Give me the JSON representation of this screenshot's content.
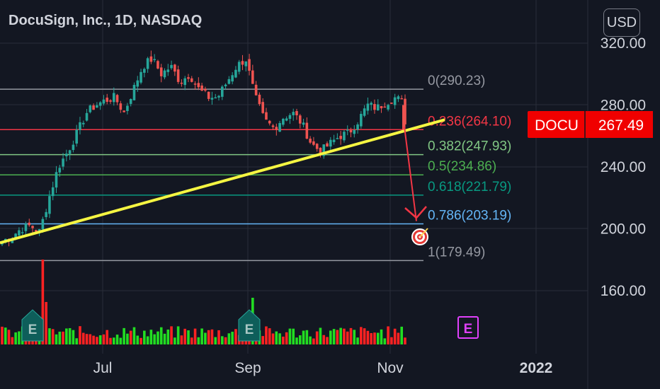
{
  "chart_title": "DocuSign, Inc., 1D, NASDAQ",
  "currency_button": "USD",
  "price_axis": {
    "ticks": [
      {
        "value": 320,
        "label": "320.00"
      },
      {
        "value": 280,
        "label": "280.00"
      },
      {
        "value": 240,
        "label": "240.00"
      },
      {
        "value": 200,
        "label": "200.00"
      },
      {
        "value": 160,
        "label": "160.00"
      }
    ]
  },
  "time_axis": {
    "ticks": [
      {
        "label": "Jul"
      },
      {
        "label": "Sep"
      },
      {
        "label": "Nov"
      },
      {
        "label": "2022"
      }
    ]
  },
  "price_badge": {
    "symbol": "DOCU",
    "price": "267.49",
    "value": 267.49
  },
  "earnings_markers": [
    "E",
    "E",
    "E"
  ],
  "colors": {
    "background": "#131722",
    "up": "#26a69a",
    "down": "#ef5350",
    "vol_up": "#22dd22",
    "vol_down": "#ff2222",
    "trendline": "#f5f542",
    "target_arrow": "#f23645",
    "badge": "#f00000",
    "earnings_future": "#e040fb",
    "earnings_past": "#0e5e5a"
  },
  "chart_data": {
    "type": "candlestick",
    "title": "DocuSign, Inc., 1D, NASDAQ",
    "ylim": [
      130,
      340
    ],
    "x_ticks": [
      "Jul",
      "Sep",
      "Nov",
      "2022"
    ],
    "last_price": 267.49,
    "fibonacci": [
      {
        "label": "0(290.23)",
        "value": 290.23,
        "color": "#9598a1"
      },
      {
        "label": "0.236(264.10)",
        "value": 264.1,
        "color": "#f23645"
      },
      {
        "label": "0.382(247.93)",
        "value": 247.93,
        "color": "#81c784"
      },
      {
        "label": "0.5(234.86)",
        "value": 234.86,
        "color": "#4caf50"
      },
      {
        "label": "0.618(221.79)",
        "value": 221.79,
        "color": "#089981"
      },
      {
        "label": "0.786(203.19)",
        "value": 203.19,
        "color": "#64b5f6"
      },
      {
        "label": "1(179.49)",
        "value": 179.49,
        "color": "#9598a1"
      }
    ],
    "trendline": {
      "from": 190,
      "to": 265
    },
    "target_price": 190,
    "price_waypoints": [
      192,
      195,
      200,
      202,
      198,
      220,
      240,
      250,
      262,
      275,
      280,
      283,
      285,
      275,
      290,
      305,
      310,
      300,
      305,
      295,
      300,
      290,
      285,
      285,
      295,
      305,
      310,
      285,
      270,
      265,
      272,
      275,
      268,
      255,
      250,
      255,
      260,
      262,
      270,
      280,
      278,
      282,
      285,
      280
    ],
    "volume_profile": "two spikes at earnings dates (early June, early September)"
  }
}
